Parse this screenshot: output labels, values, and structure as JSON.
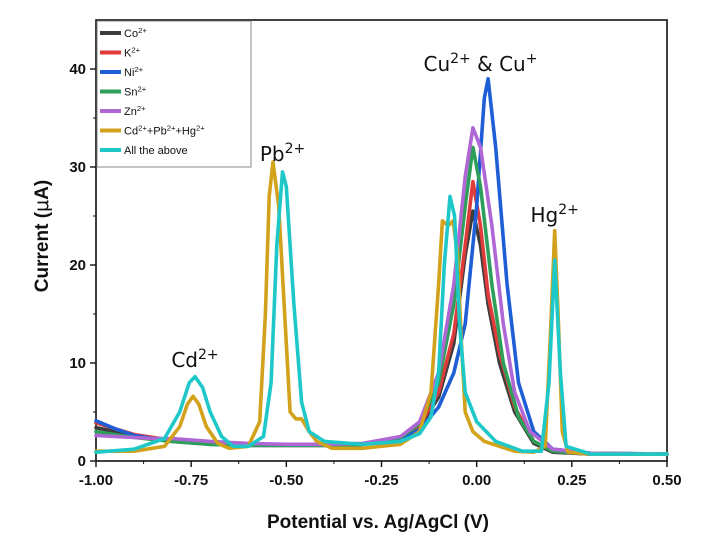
{
  "chart_data": {
    "type": "line",
    "title": "",
    "xlabel": "Potential vs. Ag/AgCl (V)",
    "ylabel_prefix": "Current (",
    "ylabel_mu": "μ",
    "ylabel_suffix": "A)",
    "xlim": [
      -1.0,
      0.5
    ],
    "ylim": [
      0,
      45
    ],
    "x_ticks": [
      -1.0,
      -0.75,
      -0.5,
      -0.25,
      0.0,
      0.25,
      0.5
    ],
    "x_tick_labels": [
      "-1.00",
      "-0.75",
      "-0.50",
      "-0.25",
      "0.00",
      "0.25",
      "0.50"
    ],
    "y_ticks": [
      0,
      10,
      20,
      30,
      40
    ],
    "y_tick_labels": [
      "0",
      "10",
      "20",
      "30",
      "40"
    ],
    "grid": false,
    "legend_position": "top-left",
    "series": [
      {
        "base": "Co",
        "sup": "2+",
        "color": "#3d3d3d",
        "points": [
          [
            -1.0,
            3.4
          ],
          [
            -0.9,
            2.6
          ],
          [
            -0.8,
            2.1
          ],
          [
            -0.7,
            1.8
          ],
          [
            -0.6,
            1.6
          ],
          [
            -0.5,
            1.6
          ],
          [
            -0.4,
            1.6
          ],
          [
            -0.3,
            1.7
          ],
          [
            -0.2,
            2.3
          ],
          [
            -0.15,
            3.5
          ],
          [
            -0.1,
            6.5
          ],
          [
            -0.06,
            12
          ],
          [
            -0.03,
            21
          ],
          [
            -0.01,
            25.5
          ],
          [
            0.01,
            22
          ],
          [
            0.03,
            16
          ],
          [
            0.06,
            10
          ],
          [
            0.1,
            5
          ],
          [
            0.15,
            1.8
          ],
          [
            0.2,
            0.9
          ],
          [
            0.3,
            0.7
          ],
          [
            0.5,
            0.7
          ]
        ]
      },
      {
        "base": "K",
        "sup": "2+",
        "color": "#e03b3b",
        "points": [
          [
            -1.0,
            3.9
          ],
          [
            -0.95,
            3.3
          ],
          [
            -0.9,
            2.7
          ],
          [
            -0.8,
            2.1
          ],
          [
            -0.7,
            1.8
          ],
          [
            -0.6,
            1.6
          ],
          [
            -0.5,
            1.6
          ],
          [
            -0.4,
            1.6
          ],
          [
            -0.3,
            1.7
          ],
          [
            -0.2,
            2.3
          ],
          [
            -0.15,
            3.6
          ],
          [
            -0.1,
            7
          ],
          [
            -0.06,
            13
          ],
          [
            -0.03,
            22
          ],
          [
            -0.01,
            28.5
          ],
          [
            0.01,
            24
          ],
          [
            0.03,
            17
          ],
          [
            0.06,
            11
          ],
          [
            0.1,
            5.5
          ],
          [
            0.15,
            2
          ],
          [
            0.2,
            1
          ],
          [
            0.3,
            0.7
          ],
          [
            0.5,
            0.7
          ]
        ]
      },
      {
        "base": "Ni",
        "sup": "2+",
        "color": "#1f5fd6",
        "points": [
          [
            -1.0,
            4.1
          ],
          [
            -0.95,
            3.3
          ],
          [
            -0.9,
            2.6
          ],
          [
            -0.8,
            2.0
          ],
          [
            -0.7,
            1.7
          ],
          [
            -0.6,
            1.6
          ],
          [
            -0.5,
            1.6
          ],
          [
            -0.4,
            1.6
          ],
          [
            -0.3,
            1.7
          ],
          [
            -0.2,
            2.2
          ],
          [
            -0.15,
            3.2
          ],
          [
            -0.1,
            5.5
          ],
          [
            -0.06,
            9
          ],
          [
            -0.03,
            14
          ],
          [
            0.0,
            26
          ],
          [
            0.02,
            37
          ],
          [
            0.03,
            39
          ],
          [
            0.05,
            32
          ],
          [
            0.08,
            18
          ],
          [
            0.11,
            8
          ],
          [
            0.15,
            3
          ],
          [
            0.2,
            1.2
          ],
          [
            0.3,
            0.8
          ],
          [
            0.5,
            0.7
          ]
        ]
      },
      {
        "base": "Sn",
        "sup": "2+",
        "color": "#2e9e5b",
        "points": [
          [
            -1.0,
            3.0
          ],
          [
            -0.9,
            2.4
          ],
          [
            -0.8,
            2.0
          ],
          [
            -0.7,
            1.7
          ],
          [
            -0.6,
            1.6
          ],
          [
            -0.5,
            1.6
          ],
          [
            -0.4,
            1.6
          ],
          [
            -0.3,
            1.7
          ],
          [
            -0.2,
            2.4
          ],
          [
            -0.15,
            3.8
          ],
          [
            -0.1,
            8
          ],
          [
            -0.06,
            16
          ],
          [
            -0.03,
            26
          ],
          [
            -0.01,
            32
          ],
          [
            0.01,
            28
          ],
          [
            0.04,
            18
          ],
          [
            0.07,
            10
          ],
          [
            0.11,
            4.5
          ],
          [
            0.15,
            2
          ],
          [
            0.2,
            1
          ],
          [
            0.3,
            0.7
          ],
          [
            0.5,
            0.7
          ]
        ]
      },
      {
        "base": "Zn",
        "sup": "2+",
        "color": "#b067d6",
        "points": [
          [
            -1.0,
            2.6
          ],
          [
            -0.9,
            2.4
          ],
          [
            -0.85,
            2.3
          ],
          [
            -0.8,
            2.3
          ],
          [
            -0.7,
            2.0
          ],
          [
            -0.6,
            1.8
          ],
          [
            -0.5,
            1.7
          ],
          [
            -0.4,
            1.7
          ],
          [
            -0.3,
            1.8
          ],
          [
            -0.2,
            2.5
          ],
          [
            -0.15,
            4
          ],
          [
            -0.1,
            9
          ],
          [
            -0.06,
            18
          ],
          [
            -0.03,
            29
          ],
          [
            -0.01,
            34
          ],
          [
            0.01,
            32
          ],
          [
            0.04,
            24
          ],
          [
            0.07,
            14
          ],
          [
            0.1,
            7
          ],
          [
            0.14,
            3
          ],
          [
            0.2,
            1.2
          ],
          [
            0.3,
            0.8
          ],
          [
            0.5,
            0.7
          ]
        ]
      },
      {
        "base": "Cd",
        "sup": "2+",
        "parts": [
          [
            "Pb",
            "2+"
          ],
          [
            "Hg",
            "2+"
          ]
        ],
        "color": "#d2a21c",
        "points": [
          [
            -1.0,
            1.0
          ],
          [
            -0.9,
            1.0
          ],
          [
            -0.82,
            1.5
          ],
          [
            -0.78,
            3.5
          ],
          [
            -0.76,
            5.8
          ],
          [
            -0.745,
            6.6
          ],
          [
            -0.73,
            5.8
          ],
          [
            -0.71,
            3.5
          ],
          [
            -0.68,
            1.8
          ],
          [
            -0.65,
            1.3
          ],
          [
            -0.6,
            1.5
          ],
          [
            -0.57,
            4
          ],
          [
            -0.555,
            15
          ],
          [
            -0.545,
            27
          ],
          [
            -0.535,
            30.5
          ],
          [
            -0.52,
            26
          ],
          [
            -0.5,
            12
          ],
          [
            -0.49,
            5
          ],
          [
            -0.475,
            4.3
          ],
          [
            -0.46,
            4.3
          ],
          [
            -0.44,
            3.0
          ],
          [
            -0.42,
            2.0
          ],
          [
            -0.38,
            1.3
          ],
          [
            -0.3,
            1.3
          ],
          [
            -0.2,
            1.7
          ],
          [
            -0.15,
            3
          ],
          [
            -0.12,
            7
          ],
          [
            -0.1,
            18
          ],
          [
            -0.09,
            24.5
          ],
          [
            -0.075,
            24
          ],
          [
            -0.062,
            24.5
          ],
          [
            -0.05,
            21
          ],
          [
            -0.04,
            12
          ],
          [
            -0.03,
            5
          ],
          [
            -0.01,
            3
          ],
          [
            0.02,
            2
          ],
          [
            0.1,
            1
          ],
          [
            0.15,
            0.9
          ],
          [
            0.18,
            1.5
          ],
          [
            0.195,
            14
          ],
          [
            0.205,
            23.5
          ],
          [
            0.215,
            14
          ],
          [
            0.225,
            3
          ],
          [
            0.24,
            0.9
          ],
          [
            0.3,
            0.7
          ],
          [
            0.5,
            0.7
          ]
        ]
      },
      {
        "base": "All the above",
        "sup": "",
        "color": "#1fc8c8",
        "points": [
          [
            -1.0,
            0.9
          ],
          [
            -0.9,
            1.2
          ],
          [
            -0.82,
            2.3
          ],
          [
            -0.78,
            5
          ],
          [
            -0.755,
            8
          ],
          [
            -0.74,
            8.6
          ],
          [
            -0.72,
            7.5
          ],
          [
            -0.7,
            5
          ],
          [
            -0.67,
            2.5
          ],
          [
            -0.64,
            1.5
          ],
          [
            -0.6,
            1.5
          ],
          [
            -0.56,
            2.5
          ],
          [
            -0.54,
            8
          ],
          [
            -0.525,
            22
          ],
          [
            -0.51,
            29.5
          ],
          [
            -0.5,
            28
          ],
          [
            -0.48,
            16
          ],
          [
            -0.46,
            6
          ],
          [
            -0.44,
            3
          ],
          [
            -0.4,
            2
          ],
          [
            -0.3,
            1.7
          ],
          [
            -0.2,
            2
          ],
          [
            -0.15,
            2.8
          ],
          [
            -0.12,
            4.5
          ],
          [
            -0.1,
            9
          ],
          [
            -0.085,
            20
          ],
          [
            -0.07,
            27
          ],
          [
            -0.058,
            25
          ],
          [
            -0.045,
            14
          ],
          [
            -0.03,
            7
          ],
          [
            0.0,
            4
          ],
          [
            0.05,
            2
          ],
          [
            0.12,
            1
          ],
          [
            0.17,
            1
          ],
          [
            0.19,
            8
          ],
          [
            0.205,
            20.5
          ],
          [
            0.22,
            9
          ],
          [
            0.235,
            1.5
          ],
          [
            0.3,
            0.7
          ],
          [
            0.5,
            0.7
          ]
        ]
      }
    ],
    "annotations": [
      {
        "base": "Cd",
        "sup": "2+",
        "x": -0.74,
        "y": 9.6
      },
      {
        "base": "Pb",
        "sup": "2+",
        "x": -0.51,
        "y": 30.6
      },
      {
        "base": "Cu",
        "sup": "2+",
        "mid": " & Cu",
        "sup2": "+",
        "x": 0.01,
        "y": 39.8
      },
      {
        "base": "Hg",
        "sup": "2+",
        "x": 0.205,
        "y": 24.4
      }
    ]
  }
}
